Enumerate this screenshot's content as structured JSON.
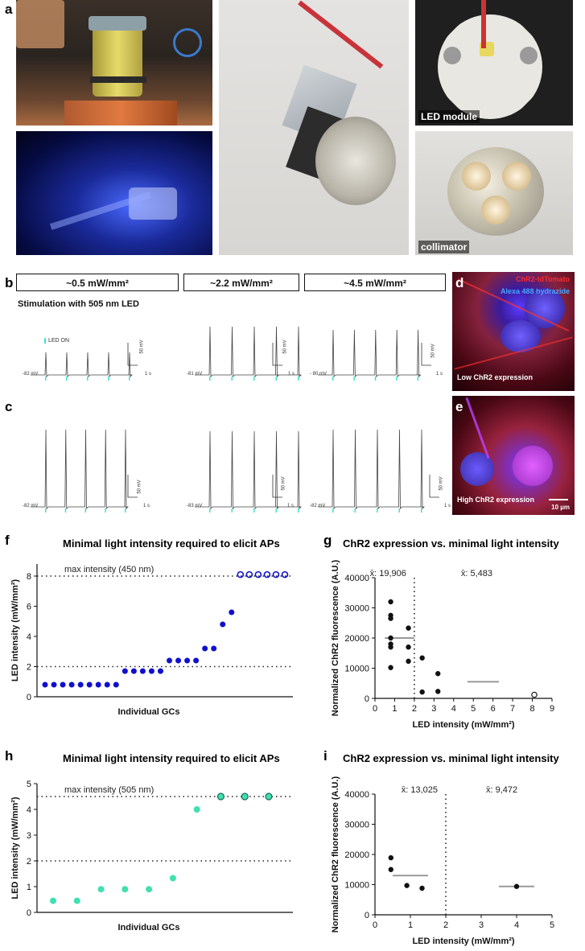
{
  "panel_letters": {
    "a": "a",
    "b": "b",
    "c": "c",
    "d": "d",
    "e": "e",
    "f": "f",
    "g": "g",
    "h": "h",
    "i": "i"
  },
  "photo_labels": {
    "led_module": "LED module",
    "collimator": "collimator"
  },
  "intensity_headers": [
    "~0.5 mW/mm²",
    "~2.2 mW/mm²",
    "~4.5 mW/mm²"
  ],
  "stimulation_caption": "Stimulation with 505 nm LED",
  "led_on_label": "LED ON",
  "trace_panels": {
    "b": [
      {
        "baseline": "-82 mV",
        "scale_v": "50 mV",
        "scale_t": "1 s"
      },
      {
        "baseline": "-81 mV",
        "scale_v": "50 mV",
        "scale_t": "1 s"
      },
      {
        "baseline": "- 80 mV",
        "scale_v": "50 mV",
        "scale_t": "1 s"
      }
    ],
    "c": [
      {
        "baseline": "-82 mV",
        "scale_v": "50 mV",
        "scale_t": "1 s"
      },
      {
        "baseline": "-83 mV",
        "scale_v": "50 mV",
        "scale_t": "1 s"
      },
      {
        "baseline": "-82 mV",
        "scale_v": "50 mV",
        "scale_t": "1 s"
      }
    ]
  },
  "fluorescence": {
    "d": {
      "label_red": "ChR2-tdTomato",
      "label_blue": "Alexa 488 hydrazide",
      "caption": "Low ChR2 expression"
    },
    "e": {
      "caption": "High ChR2 expression",
      "scalebar": "10 µm"
    }
  },
  "colors": {
    "blue_dot": "#1010cc",
    "teal_dot": "#40e0b0",
    "mean_line": "#999999",
    "fluor_red": "#ff2a2a",
    "fluor_blue": "#4aa6ff"
  },
  "chart_data": [
    {
      "id": "f",
      "type": "scatter",
      "title": "Minimal light intensity required to elicit APs",
      "xlabel": "Individual GCs",
      "ylabel": "LED intensity (mW/mm²)",
      "ylim": [
        0,
        8.8
      ],
      "yticks": [
        0,
        2,
        4,
        6,
        8
      ],
      "reference_lines": [
        {
          "y": 8,
          "label": "max intensity (450 nm)"
        },
        {
          "y": 2,
          "label": ""
        }
      ],
      "series": [
        {
          "marker": "filled",
          "values": [
            0.8,
            0.8,
            0.8,
            0.8,
            0.8,
            0.8,
            0.8,
            0.8,
            0.8,
            1.7,
            1.7,
            1.7,
            1.7,
            1.7,
            2.4,
            2.4,
            2.4,
            2.4,
            3.2,
            3.2,
            4.8,
            5.6
          ]
        },
        {
          "marker": "open",
          "values": [
            8.1,
            8.1,
            8.1,
            8.1,
            8.1,
            8.1
          ]
        }
      ]
    },
    {
      "id": "g",
      "type": "scatter",
      "title": "ChR2 expression vs. minimal light intensity",
      "xlabel": "LED intensity (mW/mm²)",
      "ylabel": "Normalized ChR2 fluorescence (A.U.)",
      "xlim": [
        0,
        9
      ],
      "ylim": [
        0,
        40000
      ],
      "xticks": [
        0,
        1,
        2,
        3,
        4,
        5,
        6,
        7,
        8,
        9
      ],
      "yticks": [
        0,
        10000,
        20000,
        30000,
        40000
      ],
      "divider_x": 2,
      "annotations": [
        "x̄: 19,906",
        "x̄: 5,483"
      ],
      "points": [
        {
          "x": 0.8,
          "y": 32000
        },
        {
          "x": 0.8,
          "y": 27500
        },
        {
          "x": 0.8,
          "y": 26500
        },
        {
          "x": 0.8,
          "y": 20000
        },
        {
          "x": 0.8,
          "y": 18000
        },
        {
          "x": 0.8,
          "y": 17000
        },
        {
          "x": 0.8,
          "y": 10200
        },
        {
          "x": 1.7,
          "y": 23300
        },
        {
          "x": 1.7,
          "y": 17000
        },
        {
          "x": 1.7,
          "y": 12300
        },
        {
          "x": 2.4,
          "y": 13400
        },
        {
          "x": 2.4,
          "y": 2100
        },
        {
          "x": 3.2,
          "y": 8200
        },
        {
          "x": 3.2,
          "y": 2300
        }
      ],
      "open_points": [
        {
          "x": 8.1,
          "y": 1200
        }
      ],
      "mean_lines": [
        {
          "x1": 0.5,
          "x2": 2.0,
          "y": 20000
        },
        {
          "x1": 4.7,
          "x2": 6.3,
          "y": 5500
        }
      ]
    },
    {
      "id": "h",
      "type": "scatter",
      "title": "Minimal light intensity required to elicit APs",
      "xlabel": "Individual GCs",
      "ylabel": "LED intensity (mW/mm²)",
      "ylim": [
        0,
        5
      ],
      "yticks": [
        0,
        1,
        2,
        3,
        4,
        5
      ],
      "reference_lines": [
        {
          "y": 4.5,
          "label": "max intensity (505 nm)"
        },
        {
          "y": 2,
          "label": ""
        }
      ],
      "series": [
        {
          "marker": "filled",
          "values": [
            0.45,
            0.45,
            0.9,
            0.9,
            0.9,
            1.33,
            4.0
          ]
        },
        {
          "marker": "ringed",
          "values": [
            4.5,
            4.5,
            4.5
          ]
        }
      ]
    },
    {
      "id": "i",
      "type": "scatter",
      "title": "ChR2 expression vs. minimal light intensity",
      "xlabel": "LED intensity (mW/mm²)",
      "ylabel": "Normalized ChR2 fluorescence (A.U.)",
      "xlim": [
        0,
        5
      ],
      "ylim": [
        0,
        40000
      ],
      "xticks": [
        0,
        1,
        2,
        3,
        4,
        5
      ],
      "yticks": [
        0,
        10000,
        20000,
        30000,
        40000
      ],
      "divider_x": 2,
      "annotations": [
        "x̄: 13,025",
        "x̄: 9,472"
      ],
      "points": [
        {
          "x": 0.45,
          "y": 18900
        },
        {
          "x": 0.45,
          "y": 15000
        },
        {
          "x": 0.9,
          "y": 9700
        },
        {
          "x": 1.33,
          "y": 8800
        },
        {
          "x": 4.0,
          "y": 9400
        }
      ],
      "mean_lines": [
        {
          "x1": 0.5,
          "x2": 1.5,
          "y": 13000
        },
        {
          "x1": 3.5,
          "x2": 4.5,
          "y": 9400
        }
      ]
    }
  ]
}
